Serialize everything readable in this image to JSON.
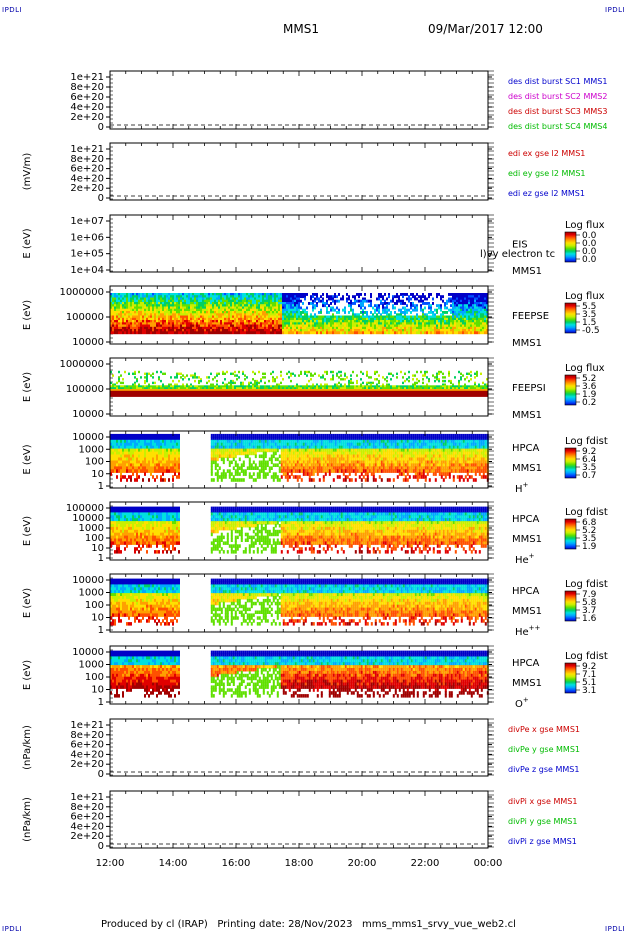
{
  "corners": {
    "top_left": "IPDLI",
    "top_right": "IPDLI",
    "bottom_left": "IPDLI",
    "bottom_right": "IPDLI"
  },
  "header": {
    "mission": "MMS1",
    "date": "09/Mar/2017 12:00"
  },
  "footer": "Produced by cl (IRAP)   Printing date: 28/Nov/2023   mms_mms1_srvy_vue_web2.cl",
  "chart_data": {
    "type": "heatmap",
    "x_ticks": [
      "12:00",
      "14:00",
      "16:00",
      "18:00",
      "20:00",
      "22:00",
      "00:00"
    ],
    "panels": [
      {
        "id": "des-dist",
        "ylabel": "",
        "yticks": [
          "1e+21",
          "8e+20",
          "6e+20",
          "4e+20",
          "2e+20",
          "0"
        ],
        "legend": [
          {
            "text": "des dist burst SC1 MMS1",
            "color": "#0000cc"
          },
          {
            "text": "des dist burst SC2 MMS2",
            "color": "#cc00cc"
          },
          {
            "text": "des dist burst SC3 MMS3",
            "color": "#cc0000"
          },
          {
            "text": "des dist burst SC4 MMS4",
            "color": "#00bb00"
          }
        ]
      },
      {
        "id": "edi-e",
        "ylabel": "(mV/m)",
        "yticks": [
          "1e+21",
          "8e+20",
          "6e+20",
          "4e+20",
          "2e+20",
          "0"
        ],
        "legend": [
          {
            "text": "edi ex gse l2 MMS1",
            "color": "#cc0000"
          },
          {
            "text": "edi ey gse l2 MMS1",
            "color": "#00bb00"
          },
          {
            "text": "edi ez gse l2 MMS1",
            "color": "#0000cc"
          }
        ]
      },
      {
        "id": "eis",
        "ylabel": "E (eV)",
        "yticks": [
          "1e+07",
          "1e+06",
          "1e+05",
          "1e+04"
        ],
        "instrument": [
          "EIS",
          "MMS1"
        ],
        "extra_label": "l)vy electron tc",
        "cbar_title": "Log flux",
        "cbar_ticks": [
          "0.0",
          "0.0",
          "0.0",
          "0.0"
        ]
      },
      {
        "id": "feeps-e",
        "ylabel": "E (eV)",
        "yticks": [
          "1000000",
          "100000",
          "10000"
        ],
        "instrument": [
          "FEEPSE",
          "MMS1"
        ],
        "cbar_title": "Log flux",
        "cbar_ticks": [
          "5.5",
          "3.5",
          "1.5",
          "-0.5"
        ]
      },
      {
        "id": "feeps-i",
        "ylabel": "E (eV)",
        "yticks": [
          "1000000",
          "100000",
          "10000"
        ],
        "instrument": [
          "FEEPSI",
          "MMS1"
        ],
        "cbar_title": "Log flux",
        "cbar_ticks": [
          "5.2",
          "3.6",
          "1.9",
          "0.2"
        ]
      },
      {
        "id": "hpca-h",
        "ylabel": "E (eV)",
        "yticks": [
          "10000",
          "1000",
          "100",
          "10",
          "1"
        ],
        "instrument": [
          "HPCA",
          "MMS1"
        ],
        "species": "H",
        "species_sup": "+",
        "cbar_title": "Log fdist",
        "cbar_ticks": [
          "9.2",
          "6.4",
          "3.5",
          "0.7"
        ]
      },
      {
        "id": "hpca-he",
        "ylabel": "E (eV)",
        "yticks": [
          "100000",
          "10000",
          "1000",
          "100",
          "10",
          "1"
        ],
        "instrument": [
          "HPCA",
          "MMS1"
        ],
        "species": "He",
        "species_sup": "+",
        "cbar_title": "Log fdist",
        "cbar_ticks": [
          "6.8",
          "5.2",
          "3.5",
          "1.9"
        ]
      },
      {
        "id": "hpca-he2",
        "ylabel": "E (eV)",
        "yticks": [
          "10000",
          "1000",
          "100",
          "10",
          "1"
        ],
        "instrument": [
          "HPCA",
          "MMS1"
        ],
        "species": "He",
        "species_sup": "++",
        "cbar_title": "Log fdist",
        "cbar_ticks": [
          "7.9",
          "5.8",
          "3.7",
          "1.6"
        ]
      },
      {
        "id": "hpca-o",
        "ylabel": "E (eV)",
        "yticks": [
          "10000",
          "1000",
          "100",
          "10",
          "1"
        ],
        "instrument": [
          "HPCA",
          "MMS1"
        ],
        "species": "O",
        "species_sup": "+",
        "cbar_title": "Log fdist",
        "cbar_ticks": [
          "9.2",
          "7.1",
          "5.1",
          "3.1"
        ]
      },
      {
        "id": "divpe",
        "ylabel": "(nPa/km)",
        "yticks": [
          "1e+21",
          "8e+20",
          "6e+20",
          "4e+20",
          "2e+20",
          "0"
        ],
        "legend": [
          {
            "text": "divPe x gse MMS1",
            "color": "#cc0000"
          },
          {
            "text": "divPe y gse MMS1",
            "color": "#00bb00"
          },
          {
            "text": "divPe z gse MMS1",
            "color": "#0000cc"
          }
        ]
      },
      {
        "id": "divpi",
        "ylabel": "(nPa/km)",
        "yticks": [
          "1e+21",
          "8e+20",
          "6e+20",
          "4e+20",
          "2e+20",
          "0"
        ],
        "legend": [
          {
            "text": "divPi x gse MMS1",
            "color": "#cc0000"
          },
          {
            "text": "divPi y gse MMS1",
            "color": "#00bb00"
          },
          {
            "text": "divPi z gse MMS1",
            "color": "#0000cc"
          }
        ]
      }
    ]
  }
}
